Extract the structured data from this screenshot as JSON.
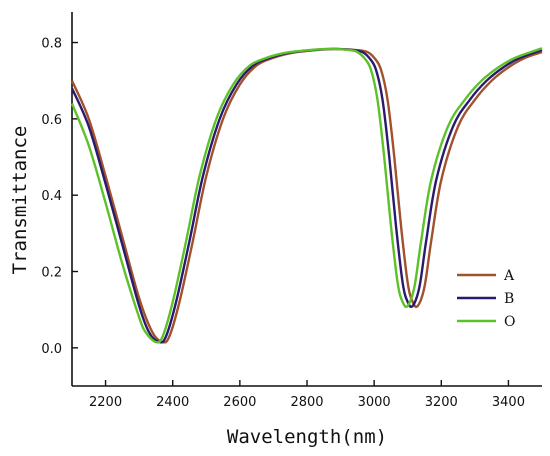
{
  "chart_data": {
    "type": "line",
    "title": "",
    "xlabel": "Wavelength(nm)",
    "ylabel": "Transmittance",
    "xlim": [
      2100,
      3500
    ],
    "ylim": [
      -0.1,
      0.88
    ],
    "xticks": [
      2200,
      2400,
      2600,
      2800,
      3000,
      3200,
      3400
    ],
    "yticks": [
      0.0,
      0.2,
      0.4,
      0.6,
      0.8
    ],
    "ytick_labels": [
      "0.0",
      "0.2",
      "0.4",
      "0.6",
      "0.8"
    ],
    "grid": false,
    "legend_position": "lower-right",
    "series": [
      {
        "name": "A",
        "color": "#a0522d",
        "x": [
          2100,
          2150,
          2200,
          2250,
          2300,
          2340,
          2370,
          2390,
          2420,
          2460,
          2500,
          2550,
          2600,
          2650,
          2700,
          2750,
          2800,
          2850,
          2900,
          2950,
          2980,
          3000,
          3020,
          3040,
          3060,
          3080,
          3100,
          3115,
          3130,
          3150,
          3170,
          3200,
          3250,
          3300,
          3350,
          3400,
          3450,
          3500
        ],
        "y": [
          0.7,
          0.6,
          0.45,
          0.29,
          0.13,
          0.04,
          0.015,
          0.03,
          0.12,
          0.28,
          0.45,
          0.6,
          0.69,
          0.74,
          0.76,
          0.772,
          0.778,
          0.782,
          0.783,
          0.78,
          0.775,
          0.76,
          0.73,
          0.65,
          0.5,
          0.32,
          0.17,
          0.12,
          0.11,
          0.16,
          0.28,
          0.44,
          0.58,
          0.65,
          0.7,
          0.735,
          0.76,
          0.775
        ]
      },
      {
        "name": "B",
        "color": "#2a1a6e",
        "x": [
          2100,
          2150,
          2200,
          2250,
          2300,
          2330,
          2360,
          2380,
          2410,
          2450,
          2490,
          2540,
          2590,
          2640,
          2690,
          2740,
          2790,
          2840,
          2890,
          2940,
          2965,
          2985,
          3005,
          3025,
          3045,
          3065,
          3085,
          3100,
          3115,
          3135,
          3155,
          3185,
          3235,
          3285,
          3335,
          3385,
          3435,
          3500
        ],
        "y": [
          0.68,
          0.58,
          0.43,
          0.27,
          0.11,
          0.04,
          0.015,
          0.03,
          0.12,
          0.28,
          0.45,
          0.6,
          0.69,
          0.74,
          0.76,
          0.772,
          0.778,
          0.782,
          0.783,
          0.78,
          0.775,
          0.76,
          0.73,
          0.65,
          0.5,
          0.32,
          0.17,
          0.12,
          0.11,
          0.16,
          0.28,
          0.44,
          0.58,
          0.65,
          0.7,
          0.735,
          0.76,
          0.78
        ]
      },
      {
        "name": "O",
        "color": "#5cc22a",
        "x": [
          2100,
          2150,
          2200,
          2250,
          2300,
          2320,
          2350,
          2370,
          2400,
          2440,
          2480,
          2530,
          2580,
          2630,
          2680,
          2730,
          2780,
          2830,
          2880,
          2930,
          2950,
          2970,
          2990,
          3010,
          3030,
          3050,
          3070,
          3085,
          3100,
          3120,
          3140,
          3170,
          3220,
          3270,
          3320,
          3370,
          3420,
          3500
        ],
        "y": [
          0.64,
          0.53,
          0.38,
          0.22,
          0.08,
          0.04,
          0.015,
          0.03,
          0.12,
          0.28,
          0.45,
          0.6,
          0.69,
          0.74,
          0.76,
          0.772,
          0.778,
          0.782,
          0.783,
          0.78,
          0.775,
          0.76,
          0.73,
          0.65,
          0.5,
          0.32,
          0.17,
          0.12,
          0.11,
          0.16,
          0.28,
          0.44,
          0.58,
          0.65,
          0.7,
          0.735,
          0.76,
          0.785
        ]
      }
    ]
  }
}
